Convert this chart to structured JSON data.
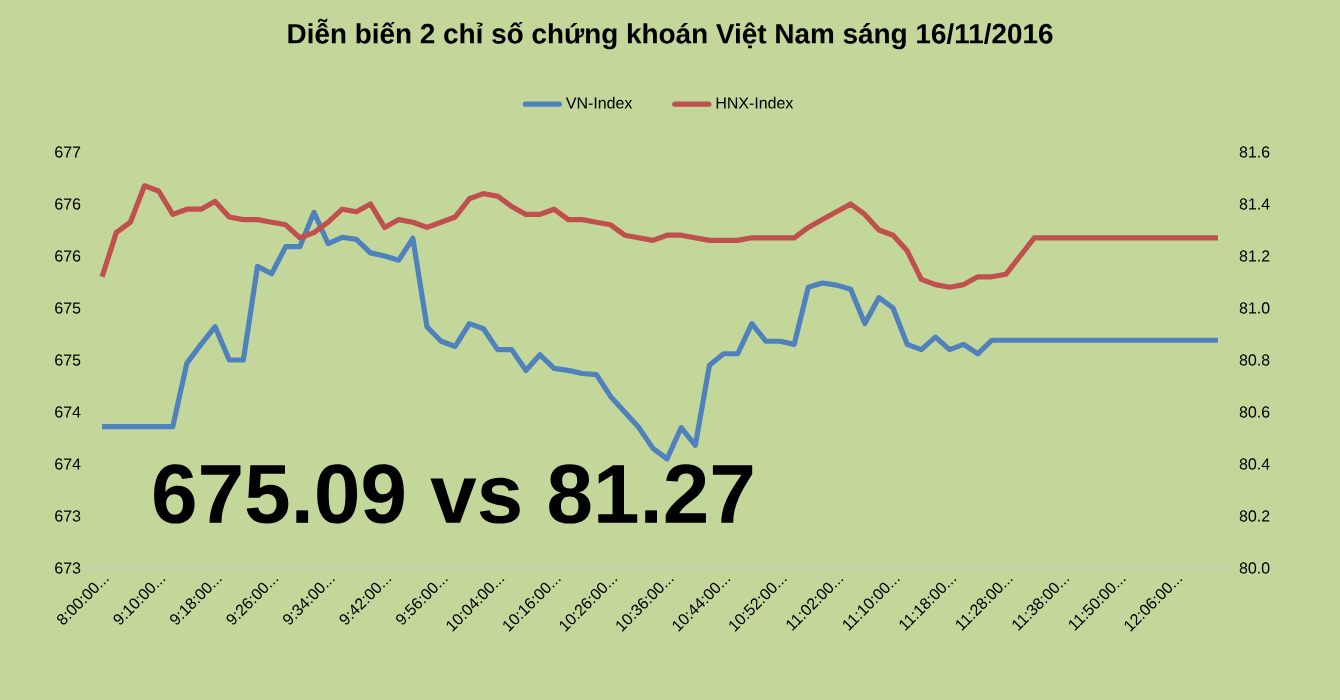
{
  "chart_data": {
    "type": "line",
    "title": "Diễn biến 2 chỉ số chứng khoán Việt Nam sáng 16/11/2016",
    "categories": [
      "8:00:00...",
      null,
      null,
      null,
      "9:10:00...",
      null,
      null,
      null,
      "9:18:00...",
      null,
      null,
      null,
      "9:26:00...",
      null,
      null,
      null,
      "9:34:00...",
      null,
      null,
      null,
      "9:42:00...",
      null,
      null,
      null,
      "9:56:00...",
      null,
      null,
      null,
      "10:04:00...",
      null,
      null,
      null,
      "10:16:00...",
      null,
      null,
      null,
      "10:26:00...",
      null,
      null,
      null,
      "10:36:00...",
      null,
      null,
      null,
      "10:44:00...",
      null,
      null,
      null,
      "10:52:00...",
      null,
      null,
      null,
      "11:02:00...",
      null,
      null,
      null,
      "11:10:00...",
      null,
      null,
      null,
      "11:18:00...",
      null,
      null,
      null,
      "11:28:00...",
      null,
      null,
      null,
      "11:38:00...",
      null,
      null,
      null,
      "11:50:00...",
      null,
      null,
      null,
      "12:06:00...",
      null,
      null,
      null
    ],
    "series": [
      {
        "name": "VN-Index",
        "color": "#4f81bd",
        "values": [
          674.26,
          674.26,
          674.26,
          674.26,
          674.26,
          674.26,
          674.87,
          675.05,
          675.22,
          674.9,
          674.9,
          675.8,
          675.73,
          675.99,
          675.99,
          676.32,
          676.02,
          676.08,
          676.06,
          675.93,
          675.9,
          675.86,
          676.07,
          675.22,
          675.08,
          675.03,
          675.25,
          675.2,
          675.0,
          675.0,
          674.8,
          674.95,
          674.82,
          674.8,
          674.77,
          674.76,
          674.55,
          674.4,
          674.25,
          674.05,
          673.95,
          674.25,
          674.08,
          674.85,
          674.96,
          674.96,
          675.25,
          675.08,
          675.08,
          675.05,
          675.6,
          675.64,
          675.62,
          675.58,
          675.25,
          675.5,
          675.4,
          675.05,
          675.0,
          675.12,
          675.0,
          675.05,
          674.96,
          675.09,
          675.09,
          675.09,
          675.09,
          675.09,
          675.09,
          675.09,
          675.09,
          675.09,
          675.09,
          675.09,
          675.09,
          675.09,
          675.09,
          675.09,
          675.09,
          675.09
        ]
      },
      {
        "name": "HNX-Index",
        "color": "#c0504d",
        "axis": "y2",
        "values": [
          81.12,
          81.29,
          81.33,
          81.47,
          81.45,
          81.36,
          81.38,
          81.38,
          81.41,
          81.35,
          81.34,
          81.34,
          81.33,
          81.32,
          81.27,
          81.29,
          81.33,
          81.38,
          81.37,
          81.4,
          81.31,
          81.34,
          81.33,
          81.31,
          81.33,
          81.35,
          81.42,
          81.44,
          81.43,
          81.39,
          81.36,
          81.36,
          81.38,
          81.34,
          81.34,
          81.33,
          81.32,
          81.28,
          81.27,
          81.26,
          81.28,
          81.28,
          81.27,
          81.26,
          81.26,
          81.26,
          81.27,
          81.27,
          81.27,
          81.27,
          81.31,
          81.34,
          81.37,
          81.4,
          81.36,
          81.3,
          81.28,
          81.22,
          81.11,
          81.09,
          81.08,
          81.09,
          81.12,
          81.12,
          81.13,
          81.2,
          81.27,
          81.27,
          81.27,
          81.27,
          81.27,
          81.27,
          81.27,
          81.27,
          81.27,
          81.27,
          81.27,
          81.27,
          81.27,
          81.27
        ]
      }
    ],
    "ylim": [
      672.9,
      676.9
    ],
    "yticks": [
      {
        "value": 672.9,
        "label": "673"
      },
      {
        "value": 673.4,
        "label": "673"
      },
      {
        "value": 673.9,
        "label": "674"
      },
      {
        "value": 674.4,
        "label": "674"
      },
      {
        "value": 674.9,
        "label": "675"
      },
      {
        "value": 675.4,
        "label": "675"
      },
      {
        "value": 675.9,
        "label": "676"
      },
      {
        "value": 676.4,
        "label": "676"
      },
      {
        "value": 676.9,
        "label": "677"
      }
    ],
    "y2lim": [
      80,
      81.6
    ],
    "y2ticks": [
      {
        "value": 80,
        "label": "80.0"
      },
      80.2,
      80.4,
      80.6,
      80.8,
      {
        "value": 81,
        "label": "81.0"
      },
      81.2,
      81.4,
      81.6
    ],
    "legend": "top",
    "annotations": [
      "675.09 vs 81.27"
    ]
  }
}
